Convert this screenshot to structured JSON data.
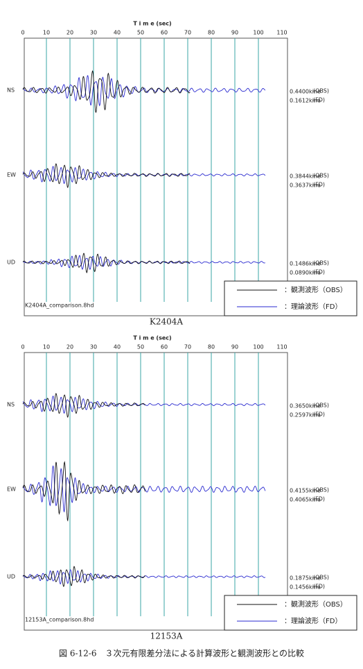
{
  "panels": [
    {
      "title": "T i m e (sec)",
      "xlim": [
        0,
        110
      ],
      "xticks": [
        0,
        10,
        20,
        30,
        40,
        50,
        60,
        70,
        80,
        90,
        100,
        110
      ],
      "components": [
        {
          "name": "NS",
          "obs": "0.4400kine",
          "fd": "0.1612kine"
        },
        {
          "name": "EW",
          "obs": "0.3844kine",
          "fd": "0.3637kine"
        },
        {
          "name": "UD",
          "obs": "0.1486kine",
          "fd": "0.0890kine"
        }
      ],
      "obs_tag": "(OBS)",
      "fd_tag": "(FD)",
      "legend": [
        "：観測波形（OBS）",
        "：理論波形（FD）"
      ],
      "filename": "K2404A_comparison.8hd",
      "caption": "K2404A"
    },
    {
      "title": "T i m e (sec)",
      "xlim": [
        0,
        110
      ],
      "xticks": [
        0,
        10,
        20,
        30,
        40,
        50,
        60,
        70,
        80,
        90,
        100,
        110
      ],
      "components": [
        {
          "name": "NS",
          "obs": "0.3650kine",
          "fd": "0.2597kine"
        },
        {
          "name": "EW",
          "obs": "0.4155kine",
          "fd": "0.4065kine"
        },
        {
          "name": "UD",
          "obs": "0.1875kine",
          "fd": "0.1456kine"
        }
      ],
      "obs_tag": "(OBS)",
      "fd_tag": "(FD)",
      "legend": [
        "：観測波形（OBS）",
        "：理論波形（FD）"
      ],
      "filename": "12153A_comparison.8hd",
      "caption": "12153A"
    }
  ],
  "figure_caption": "図 6-12-6　３次元有限差分法による計算波形と観測波形との比較"
}
